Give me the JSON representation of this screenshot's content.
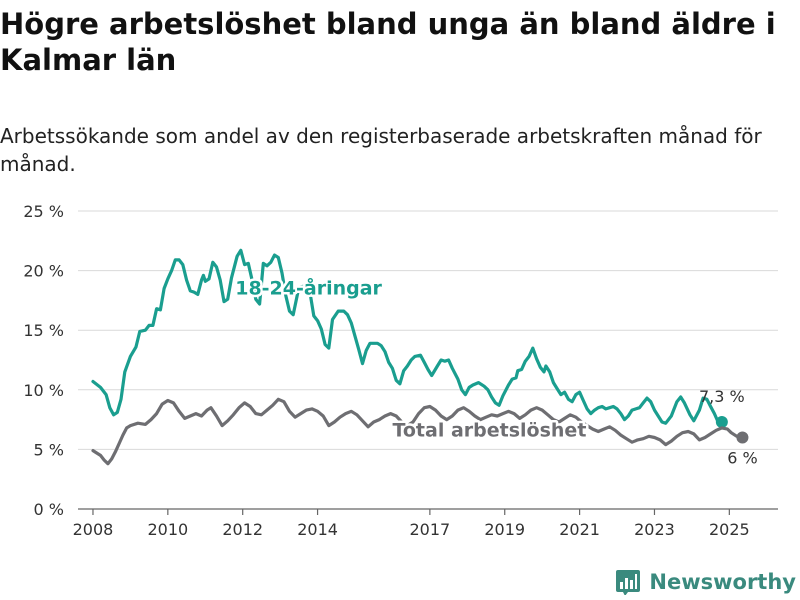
{
  "header": {
    "title": "Högre arbetslöshet bland unga än bland äldre i Kalmar län",
    "subtitle": "Arbetssökande som andel av den registerbaserade arbetskraften månad för månad."
  },
  "brand": {
    "name": "Newsworthy",
    "icon": "bar-chart-logo-icon",
    "color": "#3a8a7e"
  },
  "chart_data": {
    "type": "line",
    "title": "",
    "xlabel": "",
    "ylabel": "",
    "x_unit": "year",
    "xlim": [
      2007.6,
      2026.3
    ],
    "ylim": [
      0,
      25
    ],
    "xticks": [
      {
        "value": 2008,
        "label": "2008"
      },
      {
        "value": 2010,
        "label": "2010"
      },
      {
        "value": 2012,
        "label": "2012"
      },
      {
        "value": 2014,
        "label": "2014"
      },
      {
        "value": 2017,
        "label": "2017"
      },
      {
        "value": 2019,
        "label": "2019"
      },
      {
        "value": 2021,
        "label": "2021"
      },
      {
        "value": 2023,
        "label": "2023"
      },
      {
        "value": 2025,
        "label": "2025"
      }
    ],
    "yticks": [
      {
        "value": 0,
        "label": "0 %"
      },
      {
        "value": 5,
        "label": "5 %"
      },
      {
        "value": 10,
        "label": "10 %"
      },
      {
        "value": 15,
        "label": "15 %"
      },
      {
        "value": 20,
        "label": "20 %"
      },
      {
        "value": 25,
        "label": "25 %"
      }
    ],
    "grid": true,
    "series": [
      {
        "name": "18-24-åringar",
        "color": "#1a9e8f",
        "end_label": "7,3 %",
        "points": [
          [
            2008.0,
            10.7
          ],
          [
            2008.2,
            10.2
          ],
          [
            2008.35,
            9.6
          ],
          [
            2008.45,
            8.5
          ],
          [
            2008.55,
            7.9
          ],
          [
            2008.65,
            8.1
          ],
          [
            2008.75,
            9.2
          ],
          [
            2008.85,
            11.5
          ],
          [
            2009.0,
            12.8
          ],
          [
            2009.15,
            13.6
          ],
          [
            2009.25,
            14.9
          ],
          [
            2009.4,
            15.0
          ],
          [
            2009.5,
            15.4
          ],
          [
            2009.6,
            15.4
          ],
          [
            2009.7,
            16.8
          ],
          [
            2009.8,
            16.7
          ],
          [
            2009.9,
            18.5
          ],
          [
            2010.0,
            19.3
          ],
          [
            2010.1,
            20.0
          ],
          [
            2010.2,
            20.9
          ],
          [
            2010.3,
            20.9
          ],
          [
            2010.4,
            20.5
          ],
          [
            2010.5,
            19.2
          ],
          [
            2010.6,
            18.3
          ],
          [
            2010.7,
            18.2
          ],
          [
            2010.8,
            18.0
          ],
          [
            2010.9,
            19.2
          ],
          [
            2010.95,
            19.6
          ],
          [
            2011.0,
            19.1
          ],
          [
            2011.1,
            19.3
          ],
          [
            2011.2,
            20.7
          ],
          [
            2011.3,
            20.3
          ],
          [
            2011.4,
            19.2
          ],
          [
            2011.5,
            17.4
          ],
          [
            2011.6,
            17.6
          ],
          [
            2011.7,
            19.4
          ],
          [
            2011.85,
            21.2
          ],
          [
            2011.95,
            21.7
          ],
          [
            2012.05,
            20.5
          ],
          [
            2012.15,
            20.6
          ],
          [
            2012.25,
            19.2
          ],
          [
            2012.35,
            17.6
          ],
          [
            2012.45,
            17.2
          ],
          [
            2012.55,
            20.6
          ],
          [
            2012.65,
            20.4
          ],
          [
            2012.75,
            20.7
          ],
          [
            2012.85,
            21.3
          ],
          [
            2012.95,
            21.1
          ],
          [
            2013.05,
            19.8
          ],
          [
            2013.15,
            17.9
          ],
          [
            2013.25,
            16.6
          ],
          [
            2013.35,
            16.3
          ],
          [
            2013.5,
            18.6
          ],
          [
            2013.65,
            18.7
          ],
          [
            2013.8,
            18.1
          ],
          [
            2013.9,
            16.2
          ],
          [
            2014.0,
            15.8
          ],
          [
            2014.1,
            15.1
          ],
          [
            2014.2,
            13.8
          ],
          [
            2014.3,
            13.5
          ],
          [
            2014.4,
            15.9
          ],
          [
            2014.55,
            16.6
          ],
          [
            2014.7,
            16.6
          ],
          [
            2014.8,
            16.3
          ],
          [
            2014.9,
            15.6
          ],
          [
            2015.0,
            14.5
          ],
          [
            2015.1,
            13.4
          ],
          [
            2015.2,
            12.2
          ],
          [
            2015.3,
            13.3
          ],
          [
            2015.4,
            13.9
          ],
          [
            2015.6,
            13.9
          ],
          [
            2015.7,
            13.7
          ],
          [
            2015.8,
            13.2
          ],
          [
            2015.9,
            12.3
          ],
          [
            2016.0,
            11.8
          ],
          [
            2016.1,
            10.8
          ],
          [
            2016.2,
            10.5
          ],
          [
            2016.3,
            11.6
          ],
          [
            2016.4,
            12.0
          ],
          [
            2016.5,
            12.5
          ],
          [
            2016.6,
            12.8
          ],
          [
            2016.75,
            12.9
          ],
          [
            2016.85,
            12.3
          ],
          [
            2016.95,
            11.7
          ],
          [
            2017.05,
            11.2
          ],
          [
            2017.2,
            12.0
          ],
          [
            2017.3,
            12.5
          ],
          [
            2017.4,
            12.4
          ],
          [
            2017.5,
            12.5
          ],
          [
            2017.6,
            11.8
          ],
          [
            2017.75,
            10.9
          ],
          [
            2017.85,
            10.0
          ],
          [
            2017.95,
            9.6
          ],
          [
            2018.05,
            10.2
          ],
          [
            2018.15,
            10.4
          ],
          [
            2018.3,
            10.6
          ],
          [
            2018.45,
            10.3
          ],
          [
            2018.55,
            10.0
          ],
          [
            2018.65,
            9.4
          ],
          [
            2018.75,
            8.9
          ],
          [
            2018.85,
            8.7
          ],
          [
            2018.95,
            9.5
          ],
          [
            2019.1,
            10.4
          ],
          [
            2019.2,
            10.9
          ],
          [
            2019.3,
            11.0
          ],
          [
            2019.35,
            11.6
          ],
          [
            2019.45,
            11.7
          ],
          [
            2019.55,
            12.4
          ],
          [
            2019.65,
            12.8
          ],
          [
            2019.75,
            13.5
          ],
          [
            2019.85,
            12.6
          ],
          [
            2019.95,
            11.9
          ],
          [
            2020.05,
            11.5
          ],
          [
            2020.1,
            12.0
          ],
          [
            2020.2,
            11.5
          ],
          [
            2020.3,
            10.6
          ],
          [
            2020.4,
            10.1
          ],
          [
            2020.5,
            9.6
          ],
          [
            2020.6,
            9.8
          ],
          [
            2020.7,
            9.2
          ],
          [
            2020.8,
            9.0
          ],
          [
            2020.9,
            9.6
          ],
          [
            2021.0,
            9.8
          ],
          [
            2021.1,
            9.1
          ],
          [
            2021.2,
            8.4
          ],
          [
            2021.3,
            8.0
          ],
          [
            2021.4,
            8.3
          ],
          [
            2021.5,
            8.5
          ],
          [
            2021.6,
            8.6
          ],
          [
            2021.7,
            8.4
          ],
          [
            2021.8,
            8.5
          ],
          [
            2021.9,
            8.6
          ],
          [
            2022.0,
            8.4
          ],
          [
            2022.1,
            8.0
          ],
          [
            2022.2,
            7.5
          ],
          [
            2022.3,
            7.8
          ],
          [
            2022.4,
            8.3
          ],
          [
            2022.5,
            8.4
          ],
          [
            2022.6,
            8.5
          ],
          [
            2022.7,
            8.9
          ],
          [
            2022.8,
            9.3
          ],
          [
            2022.9,
            9.0
          ],
          [
            2023.0,
            8.3
          ],
          [
            2023.1,
            7.8
          ],
          [
            2023.2,
            7.3
          ],
          [
            2023.3,
            7.2
          ],
          [
            2023.45,
            7.8
          ],
          [
            2023.6,
            9.0
          ],
          [
            2023.7,
            9.4
          ],
          [
            2023.8,
            8.9
          ],
          [
            2023.95,
            7.9
          ],
          [
            2024.05,
            7.4
          ],
          [
            2024.2,
            8.3
          ],
          [
            2024.3,
            9.3
          ],
          [
            2024.4,
            9.2
          ],
          [
            2024.5,
            8.6
          ],
          [
            2024.6,
            8.0
          ],
          [
            2024.7,
            7.3
          ],
          [
            2024.8,
            7.3
          ]
        ]
      },
      {
        "name": "Total arbetslöshet",
        "color": "#6e6e72",
        "end_label": "6 %",
        "points": [
          [
            2008.0,
            4.9
          ],
          [
            2008.1,
            4.7
          ],
          [
            2008.2,
            4.5
          ],
          [
            2008.3,
            4.1
          ],
          [
            2008.4,
            3.8
          ],
          [
            2008.5,
            4.2
          ],
          [
            2008.6,
            4.8
          ],
          [
            2008.7,
            5.5
          ],
          [
            2008.8,
            6.2
          ],
          [
            2008.9,
            6.8
          ],
          [
            2009.0,
            7.0
          ],
          [
            2009.2,
            7.2
          ],
          [
            2009.4,
            7.1
          ],
          [
            2009.55,
            7.5
          ],
          [
            2009.7,
            8.0
          ],
          [
            2009.85,
            8.8
          ],
          [
            2010.0,
            9.1
          ],
          [
            2010.15,
            8.9
          ],
          [
            2010.3,
            8.2
          ],
          [
            2010.45,
            7.6
          ],
          [
            2010.6,
            7.8
          ],
          [
            2010.75,
            8.0
          ],
          [
            2010.9,
            7.8
          ],
          [
            2011.05,
            8.3
          ],
          [
            2011.15,
            8.5
          ],
          [
            2011.3,
            7.8
          ],
          [
            2011.45,
            7.0
          ],
          [
            2011.6,
            7.4
          ],
          [
            2011.75,
            7.9
          ],
          [
            2011.9,
            8.5
          ],
          [
            2012.05,
            8.9
          ],
          [
            2012.2,
            8.6
          ],
          [
            2012.35,
            8.0
          ],
          [
            2012.5,
            7.9
          ],
          [
            2012.65,
            8.3
          ],
          [
            2012.8,
            8.7
          ],
          [
            2012.95,
            9.2
          ],
          [
            2013.1,
            9.0
          ],
          [
            2013.25,
            8.2
          ],
          [
            2013.4,
            7.7
          ],
          [
            2013.55,
            8.0
          ],
          [
            2013.7,
            8.3
          ],
          [
            2013.85,
            8.4
          ],
          [
            2014.0,
            8.2
          ],
          [
            2014.15,
            7.8
          ],
          [
            2014.3,
            7.0
          ],
          [
            2014.45,
            7.3
          ],
          [
            2014.6,
            7.7
          ],
          [
            2014.75,
            8.0
          ],
          [
            2014.9,
            8.2
          ],
          [
            2015.05,
            7.9
          ],
          [
            2015.2,
            7.4
          ],
          [
            2015.35,
            6.9
          ],
          [
            2015.5,
            7.3
          ],
          [
            2015.65,
            7.5
          ],
          [
            2015.8,
            7.8
          ],
          [
            2015.95,
            8.0
          ],
          [
            2016.1,
            7.8
          ],
          [
            2016.25,
            7.3
          ],
          [
            2016.4,
            7.0
          ],
          [
            2016.55,
            7.3
          ],
          [
            2016.7,
            8.0
          ],
          [
            2016.85,
            8.5
          ],
          [
            2017.0,
            8.6
          ],
          [
            2017.15,
            8.3
          ],
          [
            2017.3,
            7.8
          ],
          [
            2017.45,
            7.5
          ],
          [
            2017.6,
            7.8
          ],
          [
            2017.75,
            8.3
          ],
          [
            2017.9,
            8.5
          ],
          [
            2018.05,
            8.2
          ],
          [
            2018.2,
            7.8
          ],
          [
            2018.35,
            7.5
          ],
          [
            2018.5,
            7.7
          ],
          [
            2018.65,
            7.9
          ],
          [
            2018.8,
            7.8
          ],
          [
            2018.95,
            8.0
          ],
          [
            2019.1,
            8.2
          ],
          [
            2019.25,
            8.0
          ],
          [
            2019.4,
            7.6
          ],
          [
            2019.55,
            7.9
          ],
          [
            2019.7,
            8.3
          ],
          [
            2019.85,
            8.5
          ],
          [
            2020.0,
            8.3
          ],
          [
            2020.15,
            7.9
          ],
          [
            2020.3,
            7.5
          ],
          [
            2020.45,
            7.3
          ],
          [
            2020.6,
            7.6
          ],
          [
            2020.75,
            7.9
          ],
          [
            2020.9,
            7.7
          ],
          [
            2021.05,
            7.3
          ],
          [
            2021.2,
            7.0
          ],
          [
            2021.35,
            6.7
          ],
          [
            2021.5,
            6.5
          ],
          [
            2021.65,
            6.7
          ],
          [
            2021.8,
            6.9
          ],
          [
            2021.95,
            6.6
          ],
          [
            2022.1,
            6.2
          ],
          [
            2022.25,
            5.9
          ],
          [
            2022.4,
            5.6
          ],
          [
            2022.55,
            5.8
          ],
          [
            2022.7,
            5.9
          ],
          [
            2022.85,
            6.1
          ],
          [
            2023.0,
            6.0
          ],
          [
            2023.15,
            5.8
          ],
          [
            2023.3,
            5.4
          ],
          [
            2023.45,
            5.7
          ],
          [
            2023.6,
            6.1
          ],
          [
            2023.75,
            6.4
          ],
          [
            2023.9,
            6.5
          ],
          [
            2024.05,
            6.3
          ],
          [
            2024.2,
            5.8
          ],
          [
            2024.35,
            6.0
          ],
          [
            2024.5,
            6.3
          ],
          [
            2024.65,
            6.6
          ],
          [
            2024.8,
            6.8
          ],
          [
            2024.95,
            6.7
          ],
          [
            2025.05,
            6.4
          ],
          [
            2025.2,
            6.1
          ],
          [
            2025.35,
            6.0
          ]
        ]
      }
    ]
  }
}
